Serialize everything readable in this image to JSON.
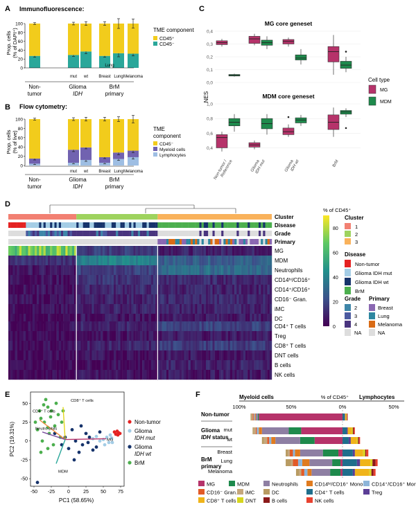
{
  "panels": {
    "A": {
      "letter": "A",
      "title": "Immunofluorescence:",
      "ylabel1": "Prop. cells",
      "ylabel2": "(% of DAPI⁺)",
      "legend_title": "TME component",
      "legend": [
        "CD45⁺",
        "CD45⁻"
      ]
    },
    "B": {
      "letter": "B",
      "title": "Flow cytometry:",
      "ylabel1": "Prop. cells",
      "ylabel2": "(% of live)",
      "legend_title1": "TME",
      "legend_title2": "component",
      "legend": [
        "CD45⁻",
        "Myeloid cells",
        "Lymphocytes"
      ]
    },
    "C": {
      "letter": "C",
      "title_top": "MG core geneset",
      "title_bottom": "MDM core geneset",
      "ylabel": "NES",
      "legend_title": "Cell type",
      "legend": [
        "MG",
        "MDM"
      ],
      "xcats": [
        "Non-tumor / Reference",
        "Glioma IDH mut",
        "Glioma IDH wt",
        "BrM"
      ]
    },
    "D": {
      "letter": "D",
      "annot_rows": [
        "Cluster",
        "Disease",
        "Grade",
        "Primary"
      ],
      "rows_top": [
        "MG",
        "MDM",
        "Neutrophils",
        "CD14ʰⁱ/CD16⁺",
        "CD14⁺/CD16⁺",
        "CD16⁻ Gran.",
        "iMC",
        "DC"
      ],
      "rows_bottom": [
        "CD4⁺ T cells",
        "Treg",
        "CD8⁺ T cells",
        "DNT cells",
        "B cells",
        "NK cells"
      ],
      "colorbar_title": "% of CD45⁺",
      "colorbar_ticks": [
        "80",
        "60",
        "40",
        "20",
        "0"
      ],
      "cluster_title": "Cluster",
      "clusters": [
        "1",
        "2",
        "3"
      ],
      "disease_title": "Disease",
      "diseases": [
        "Non-tumor",
        "Glioma IDH mut",
        "Glioma IDH wt",
        "BrM"
      ],
      "grade_title": "Grade",
      "grades": [
        "2",
        "3",
        "4",
        "NA"
      ],
      "primary_title": "Primary",
      "primaries": [
        "Breast",
        "Lung",
        "Melanoma",
        "NA"
      ]
    },
    "E": {
      "letter": "E",
      "xlabel": "PC1 (58.65%)",
      "ylabel": "PC2 (19.31%)",
      "xticks": [
        "-50",
        "-25",
        "0",
        "25",
        "50",
        "75"
      ],
      "yticks": [
        "50",
        "25",
        "0",
        "-25",
        "-50"
      ],
      "loadings": [
        "CD4⁺ T cells",
        "CD8⁺ T cells",
        "Neutro-phils",
        "MG",
        "MDM"
      ],
      "legend": [
        "Non-tumor",
        "Glioma IDH mut",
        "Glioma IDH wt",
        "BrM"
      ]
    },
    "F": {
      "letter": "F",
      "left_header": "Myeloid cells",
      "mid_header": "% of CD45⁺",
      "right_header": "Lymphocytes",
      "axis_ticks": [
        "100%",
        "50%",
        "0%",
        "50%"
      ],
      "group_nontumor": "Non-tumor",
      "group_glioma": "Glioma IDH status",
      "group_brm": "BrM primary",
      "rows": [
        "mut",
        "wt",
        "Breast",
        "Lung",
        "Melanoma"
      ],
      "legend": [
        "MG",
        "MDM",
        "Neutrophils",
        "CD14ʰⁱ/CD16⁺ Mono",
        "CD14⁺/CD16⁺ Mono",
        "CD16⁻ Gran.",
        "iMC",
        "DC",
        "CD4⁺ T cells",
        "Treg",
        "CD8⁺ T cells",
        "DNT",
        "B cells",
        "NK cells"
      ]
    }
  },
  "xgroups": {
    "nontumor": [
      "Non-",
      "tumor"
    ],
    "glioma": [
      "Glioma",
      "IDH"
    ],
    "brm": [
      "BrM",
      "primary"
    ],
    "glioma_sub": [
      "mut",
      "wt"
    ],
    "brm_sub": [
      "Breast",
      "Lung",
      "Melanoma"
    ]
  },
  "colors": {
    "cd45neg": "#F2CC1C",
    "cd45pos": "#2AA79A",
    "myeloid": "#7162B0",
    "lymph": "#9EBEE3",
    "mg": "#B6336A",
    "mdm": "#1E8A4C",
    "nontumor": "#E42222",
    "idhmut": "#A4CDE6",
    "idhwt": "#16336B",
    "brm": "#4CAF4E"
  },
  "chart_data": [
    {
      "id": "A",
      "type": "bar",
      "title": "Immunofluorescence:",
      "categories": [
        "Non-tumor",
        "Glioma IDH mut",
        "Glioma IDH wt",
        "Breast",
        "Lung",
        "Melanoma"
      ],
      "series": [
        {
          "name": "CD45⁺",
          "values": [
            27,
            29,
            37,
            27,
            33,
            32
          ],
          "err": [
            3,
            3,
            5,
            3,
            8,
            5
          ]
        },
        {
          "name": "CD45⁻",
          "values": [
            73,
            71,
            63,
            73,
            67,
            68
          ],
          "err": [
            2,
            3,
            4,
            4,
            11,
            10
          ]
        }
      ],
      "ylim": [
        0,
        100
      ],
      "yticks": [
        0,
        20,
        40,
        60,
        80,
        100
      ]
    },
    {
      "id": "B",
      "type": "bar",
      "title": "Flow cytometry:",
      "categories": [
        "Non-tumor",
        "Glioma IDH mut",
        "Glioma IDH wt",
        "Breast",
        "Lung",
        "Melanoma"
      ],
      "series": [
        {
          "name": "Lymphocytes",
          "values": [
            4,
            6,
            12,
            6,
            14,
            18
          ],
          "err": [
            2,
            2,
            3,
            2,
            3,
            4
          ]
        },
        {
          "name": "Myeloid cells",
          "values": [
            11,
            28,
            27,
            12,
            14,
            14
          ],
          "err": [
            3,
            4,
            3,
            3,
            5,
            4
          ]
        },
        {
          "name": "CD45⁻",
          "values": [
            85,
            66,
            61,
            82,
            72,
            68
          ],
          "err": [
            2,
            3,
            4,
            4,
            5,
            8
          ]
        }
      ],
      "ylim": [
        0,
        100
      ],
      "yticks": [
        0,
        20,
        40,
        60,
        80,
        100
      ]
    },
    {
      "id": "C-top",
      "type": "box",
      "title": "MG core geneset",
      "categories": [
        "Non-tumor / Reference",
        "Glioma IDH mut",
        "Glioma IDH wt",
        "BrM"
      ],
      "series": [
        {
          "name": "MG",
          "boxes": [
            [
              0.28,
              0.295,
              0.31,
              0.325,
              0.34
            ],
            [
              0.29,
              0.305,
              0.34,
              0.36,
              0.38
            ],
            [
              0.28,
              0.3,
              0.32,
              0.335,
              0.35
            ],
            [
              0.06,
              0.16,
              0.24,
              0.28,
              0.37
            ]
          ]
        },
        {
          "name": "MDM",
          "boxes": [
            [
              0.045,
              0.05,
              0.055,
              0.062,
              0.068
            ],
            [
              0.26,
              0.29,
              0.31,
              0.33,
              0.36
            ],
            [
              0.14,
              0.175,
              0.19,
              0.215,
              0.26
            ],
            [
              0.08,
              0.11,
              0.135,
              0.165,
              0.2
            ]
          ]
        }
      ],
      "outliers": [
        [
          3,
          "MDM",
          0.24
        ]
      ],
      "ylim": [
        0,
        0.4
      ],
      "yticks": [
        0.0,
        0.1,
        0.2,
        0.3,
        0.4
      ]
    },
    {
      "id": "C-bottom",
      "type": "box",
      "title": "MDM core geneset",
      "categories": [
        "Non-tumor / Reference",
        "Glioma IDH mut",
        "Glioma IDH wt",
        "BrM"
      ],
      "series": [
        {
          "name": "MG",
          "boxes": [
            [
              0.35,
              0.4,
              0.54,
              0.58,
              0.62
            ],
            [
              0.38,
              0.41,
              0.44,
              0.47,
              0.5
            ],
            [
              0.55,
              0.58,
              0.62,
              0.67,
              0.72
            ],
            [
              0.55,
              0.65,
              0.75,
              0.85,
              0.95
            ]
          ]
        },
        {
          "name": "MDM",
          "boxes": [
            [
              0.62,
              0.7,
              0.75,
              0.8,
              0.86
            ],
            [
              0.58,
              0.66,
              0.73,
              0.8,
              0.86
            ],
            [
              0.7,
              0.74,
              0.78,
              0.81,
              0.85
            ],
            [
              0.82,
              0.86,
              0.89,
              0.91,
              0.94
            ]
          ]
        }
      ],
      "outliers": [
        [
          2,
          "MG",
          0.82
        ],
        [
          3,
          "MDM",
          0.67
        ]
      ],
      "ylim": [
        0.3,
        1.0
      ],
      "yticks": [
        0.4,
        0.6,
        0.8,
        1.0
      ]
    },
    {
      "id": "E",
      "type": "scatter",
      "xlabel": "PC1 (58.65%)",
      "ylabel": "PC2 (19.31%)",
      "xlim": [
        -55,
        80
      ],
      "ylim": [
        -60,
        65
      ],
      "series": [
        {
          "name": "Non-tumor",
          "points": [
            [
              66,
              12
            ],
            [
              70,
              13
            ],
            [
              72,
              11
            ],
            [
              68,
              9
            ],
            [
              74,
              10
            ],
            [
              71,
              8
            ]
          ]
        },
        {
          "name": "Glioma IDH mut",
          "points": [
            [
              55,
              5
            ],
            [
              60,
              8
            ],
            [
              50,
              2
            ],
            [
              45,
              0
            ],
            [
              58,
              -2
            ],
            [
              62,
              4
            ],
            [
              40,
              6
            ],
            [
              35,
              3
            ],
            [
              52,
              -5
            ],
            [
              63,
              -2
            ]
          ]
        },
        {
          "name": "Glioma IDH wt",
          "points": [
            [
              30,
              5
            ],
            [
              20,
              -5
            ],
            [
              10,
              0
            ],
            [
              0,
              -10
            ],
            [
              -5,
              5
            ],
            [
              25,
              10
            ],
            [
              40,
              -8
            ],
            [
              15,
              -15
            ],
            [
              5,
              15
            ],
            [
              35,
              -12
            ],
            [
              -10,
              -5
            ],
            [
              -45,
              -55
            ],
            [
              45,
              12
            ],
            [
              18,
              20
            ],
            [
              -20,
              10
            ],
            [
              28,
              -2
            ],
            [
              8,
              -25
            ]
          ]
        },
        {
          "name": "BrM",
          "points": [
            [
              -40,
              30
            ],
            [
              -35,
              25
            ],
            [
              -30,
              45
            ],
            [
              -25,
              40
            ],
            [
              -20,
              20
            ],
            [
              -45,
              15
            ],
            [
              -38,
              0
            ],
            [
              -30,
              -10
            ],
            [
              -15,
              35
            ],
            [
              -28,
              10
            ],
            [
              -42,
              40
            ],
            [
              -33,
              55
            ],
            [
              -10,
              25
            ],
            [
              -22,
              -5
            ],
            [
              -48,
              25
            ],
            [
              -36,
              48
            ],
            [
              -18,
              50
            ],
            [
              -26,
              32
            ],
            [
              -12,
              5
            ],
            [
              -40,
              -15
            ],
            [
              -30,
              18
            ],
            [
              -8,
              40
            ]
          ]
        }
      ]
    },
    {
      "id": "F",
      "type": "bar",
      "orientation": "horizontal-diverging",
      "categories": [
        "Non-tumor",
        "Glioma IDH mut",
        "Glioma IDH wt",
        "BrM Breast",
        "BrM Lung",
        "BrM Melanoma"
      ],
      "myeloid_series": [
        "MG",
        "MDM",
        "Neutrophils",
        "CD14ʰⁱ/CD16⁺ Mono",
        "CD14⁺/CD16⁺ Mono",
        "CD16⁻ Gran.",
        "iMC",
        "DC"
      ],
      "lymphoid_series": [
        "CD4⁺ T cells",
        "Treg",
        "CD8⁺ T cells",
        "DNT",
        "B cells",
        "NK cells"
      ],
      "myeloid_values": [
        [
          81,
          1,
          2,
          1,
          1,
          1,
          1,
          1
        ],
        [
          40,
          12,
          26,
          3,
          2,
          1,
          2,
          1
        ],
        [
          27,
          14,
          24,
          4,
          2,
          2,
          3,
          2
        ],
        [
          4,
          15,
          22,
          5,
          2,
          3,
          2,
          2
        ],
        [
          2,
          8,
          22,
          7,
          4,
          5,
          2,
          5
        ],
        [
          2,
          10,
          18,
          4,
          3,
          3,
          2,
          3
        ]
      ],
      "lymphoid_values": [
        [
          2,
          0.5,
          1,
          0.5,
          0.5,
          0.5
        ],
        [
          4,
          1,
          4,
          1,
          1,
          1
        ],
        [
          6,
          2,
          6,
          1,
          1,
          1
        ],
        [
          10,
          2,
          8,
          2,
          1,
          2
        ],
        [
          14,
          3,
          10,
          2,
          3,
          2
        ],
        [
          10,
          2,
          14,
          2,
          2,
          2
        ]
      ],
      "xlim": [
        -100,
        75
      ]
    }
  ]
}
